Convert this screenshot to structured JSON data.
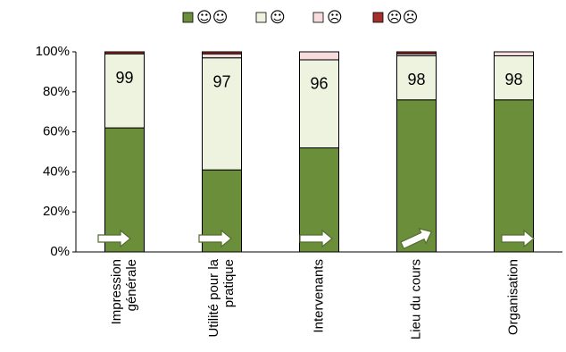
{
  "chart_data": {
    "type": "stacked_bar",
    "categories": [
      [
        "Impression",
        "générale"
      ],
      [
        "Utilité pour la",
        "pratique"
      ],
      [
        "Intervenants"
      ],
      [
        "Lieu du cours"
      ],
      [
        "Organisation"
      ]
    ],
    "series": [
      {
        "name": "☺☺",
        "color": "#6b8e3a",
        "values": [
          62,
          41,
          52,
          76,
          76
        ]
      },
      {
        "name": "☺",
        "color": "#eef3e0",
        "values": [
          37,
          56,
          44,
          22,
          22
        ]
      },
      {
        "name": "☹",
        "color": "#f6dcdc",
        "values": [
          0,
          2,
          4,
          1,
          2
        ]
      },
      {
        "name": "☹☹",
        "color": "#a3302a",
        "values": [
          1,
          1,
          0,
          1,
          0
        ]
      }
    ],
    "positive_share": [
      99,
      97,
      96,
      98,
      98
    ],
    "ylim": [
      0,
      100
    ],
    "yticks": [
      {
        "value": 0,
        "label": "0%"
      },
      {
        "value": 20,
        "label": "20%"
      },
      {
        "value": 40,
        "label": "40%"
      },
      {
        "value": 60,
        "label": "60%"
      },
      {
        "value": 80,
        "label": "80%"
      },
      {
        "value": 100,
        "label": "100%"
      }
    ]
  }
}
